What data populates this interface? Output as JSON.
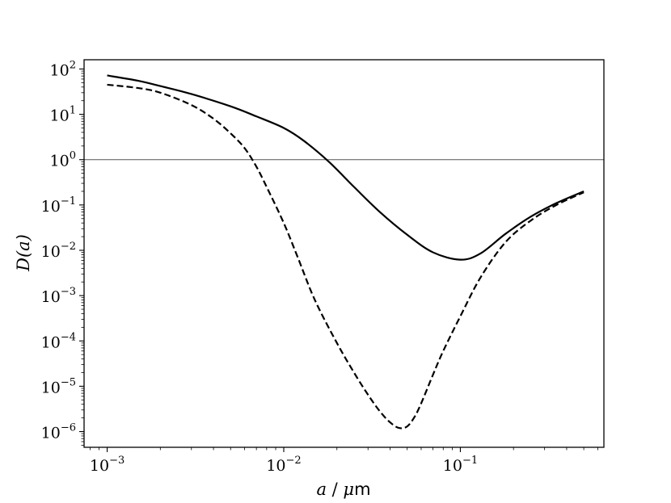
{
  "chart_data": {
    "type": "line",
    "title": "",
    "xlabel": "a / μm",
    "xlabel_parts": {
      "var": "a",
      "sep": " / ",
      "mu": "μ",
      "unit": "m"
    },
    "ylabel": "D(a)",
    "xscale": "log",
    "yscale": "log",
    "xlim": [
      0.00074,
      0.65
    ],
    "ylim": [
      4.5e-07,
      160
    ],
    "grid": false,
    "legend": "none",
    "x_ticks": [
      {
        "value": 0.001,
        "base": "10",
        "exp": "−3"
      },
      {
        "value": 0.01,
        "base": "10",
        "exp": "−2"
      },
      {
        "value": 0.1,
        "base": "10",
        "exp": "−1"
      }
    ],
    "y_ticks": [
      {
        "value": 100,
        "base": "10",
        "exp": "2"
      },
      {
        "value": 10,
        "base": "10",
        "exp": "1"
      },
      {
        "value": 1,
        "base": "10",
        "exp": "0"
      },
      {
        "value": 0.1,
        "base": "10",
        "exp": "−1"
      },
      {
        "value": 0.01,
        "base": "10",
        "exp": "−2"
      },
      {
        "value": 0.001,
        "base": "10",
        "exp": "−3"
      },
      {
        "value": 0.0001,
        "base": "10",
        "exp": "−4"
      },
      {
        "value": 1e-05,
        "base": "10",
        "exp": "−5"
      },
      {
        "value": 1e-06,
        "base": "10",
        "exp": "−6"
      }
    ],
    "reference_line": {
      "y": 1,
      "color": "#555555"
    },
    "series": [
      {
        "style": "solid",
        "color": "#000000",
        "x": [
          0.001,
          0.0015,
          0.002,
          0.003,
          0.005,
          0.007,
          0.01,
          0.013,
          0.018,
          0.025,
          0.035,
          0.05,
          0.07,
          0.1,
          0.13,
          0.18,
          0.25,
          0.35,
          0.5
        ],
        "y": [
          72,
          55,
          42,
          28,
          15,
          9,
          5,
          2.6,
          0.9,
          0.25,
          0.07,
          0.022,
          0.009,
          0.0062,
          0.0085,
          0.023,
          0.055,
          0.11,
          0.2
        ]
      },
      {
        "style": "dashed",
        "color": "#000000",
        "x": [
          0.001,
          0.0015,
          0.002,
          0.003,
          0.004,
          0.005,
          0.006,
          0.007,
          0.008,
          0.01,
          0.012,
          0.015,
          0.02,
          0.025,
          0.03,
          0.035,
          0.04,
          0.045,
          0.05,
          0.055,
          0.06,
          0.07,
          0.08,
          0.1,
          0.13,
          0.18,
          0.25,
          0.35,
          0.5
        ],
        "y": [
          45,
          38,
          30,
          16,
          8,
          3.8,
          1.8,
          0.7,
          0.25,
          0.04,
          0.007,
          0.0008,
          9e-05,
          2e-05,
          6.5e-06,
          2.8e-06,
          1.6e-06,
          1.2e-06,
          1.3e-06,
          2.1e-06,
          4.2e-06,
          1.8e-05,
          6e-05,
          0.00035,
          0.0025,
          0.015,
          0.045,
          0.1,
          0.19
        ]
      }
    ]
  }
}
